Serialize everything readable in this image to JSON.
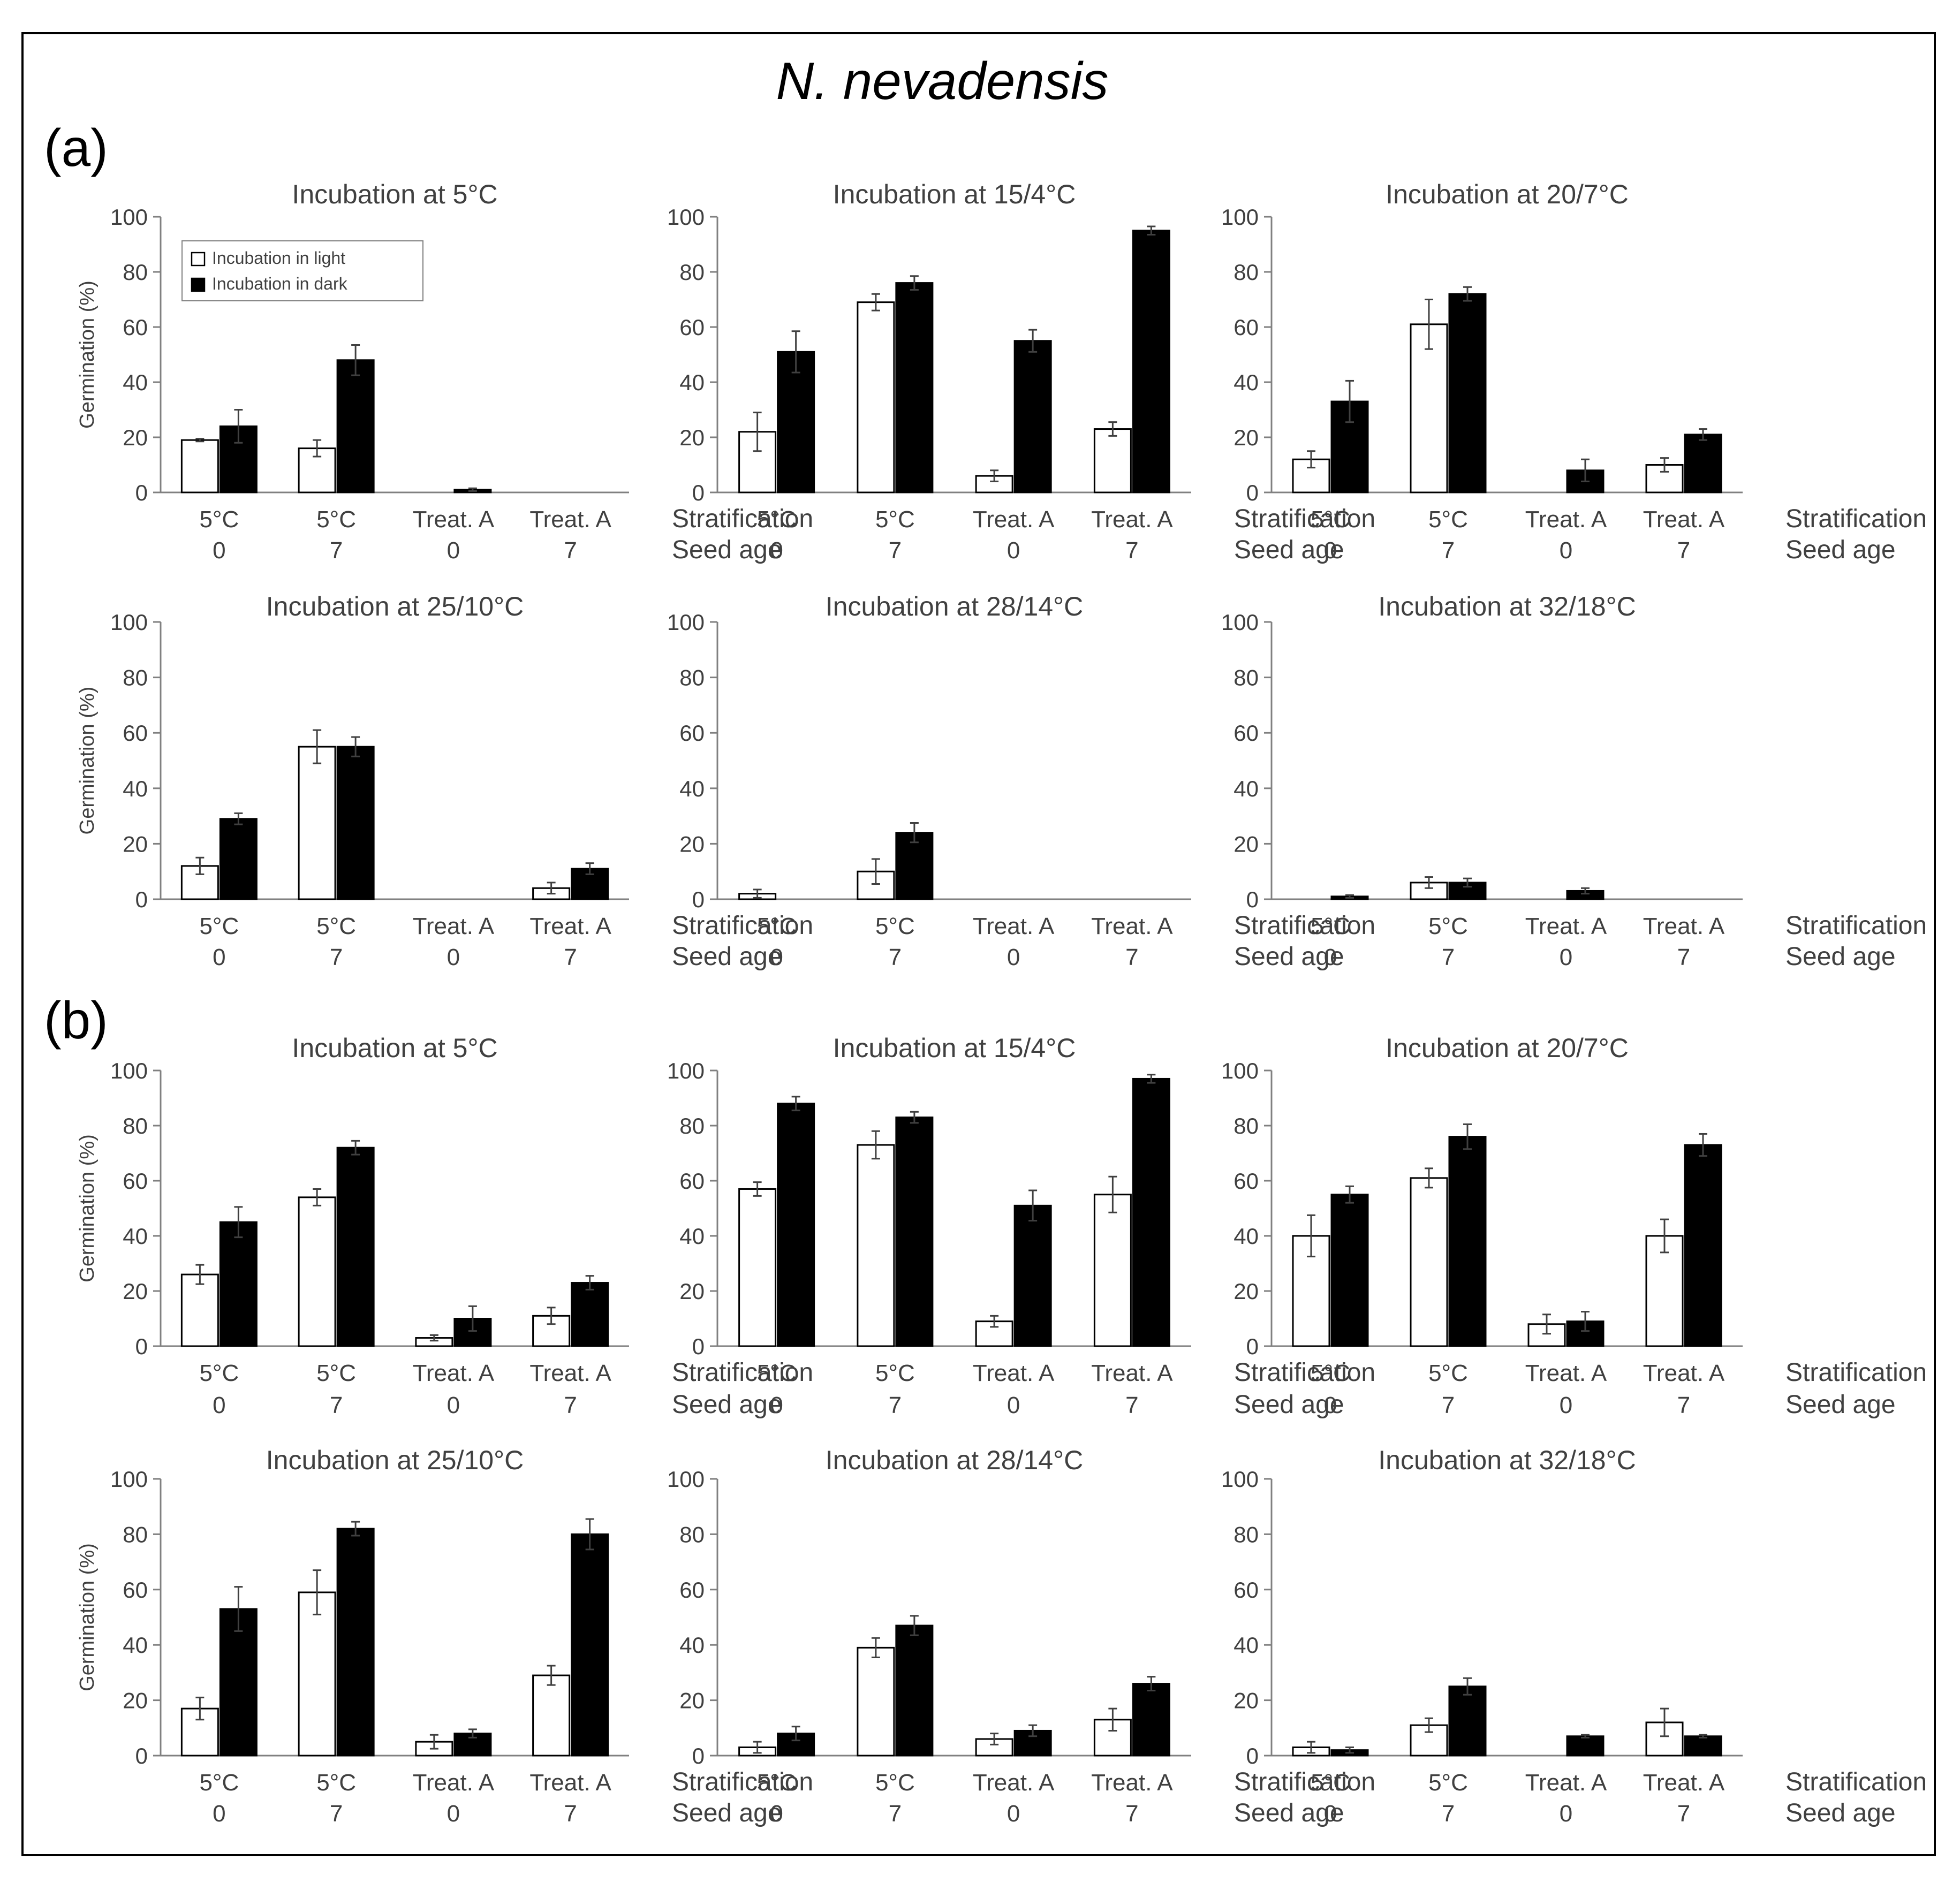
{
  "figure": {
    "title": "N. nevadensis",
    "colors": {
      "light_bar": "#ffffff",
      "dark_bar": "#000000",
      "axis": "#808080",
      "text": "#404040",
      "border": "#000000"
    }
  },
  "panels": [
    {
      "label": "(a)"
    },
    {
      "label": "(b)"
    }
  ],
  "chart_data": [
    {
      "type": "bar",
      "panel": "a",
      "title": "Incubation at 5°C",
      "ylabel": "Germination (%)",
      "ylim": [
        0,
        100
      ],
      "yticks": [
        0,
        20,
        40,
        60,
        80,
        100
      ],
      "legend": {
        "entries": [
          "Incubation in light",
          "Incubation in dark"
        ],
        "position": "top-left"
      },
      "categories": [
        "5°C",
        "5°C",
        "Treat. A",
        "Treat. A"
      ],
      "categories2": [
        "0",
        "7",
        "0",
        "7"
      ],
      "group_labels": [
        "Stratification",
        "Seed age"
      ],
      "series": [
        {
          "name": "Incubation in light",
          "values": [
            19,
            16,
            0,
            0
          ],
          "errors": [
            0.5,
            3,
            0,
            0
          ]
        },
        {
          "name": "Incubation in dark",
          "values": [
            24,
            48,
            1,
            0
          ],
          "errors": [
            6,
            5.5,
            0.5,
            0
          ]
        }
      ]
    },
    {
      "type": "bar",
      "panel": "a",
      "title": "Incubation at 15/4°C",
      "ylabel": "",
      "ylim": [
        0,
        100
      ],
      "yticks": [
        0,
        20,
        40,
        60,
        80,
        100
      ],
      "categories": [
        "5°C",
        "5°C",
        "Treat. A",
        "Treat. A"
      ],
      "categories2": [
        "0",
        "7",
        "0",
        "7"
      ],
      "group_labels": [
        "Stratification",
        "Seed age"
      ],
      "series": [
        {
          "name": "Incubation in light",
          "values": [
            22,
            69,
            6,
            23
          ],
          "errors": [
            7,
            3,
            2,
            2.5
          ]
        },
        {
          "name": "Incubation in dark",
          "values": [
            51,
            76,
            55,
            95
          ],
          "errors": [
            7.5,
            2.5,
            4,
            1.5
          ]
        }
      ]
    },
    {
      "type": "bar",
      "panel": "a",
      "title": "Incubation at 20/7°C",
      "ylabel": "",
      "ylim": [
        0,
        100
      ],
      "yticks": [
        0,
        20,
        40,
        60,
        80,
        100
      ],
      "categories": [
        "5°C",
        "5°C",
        "Treat. A",
        "Treat. A"
      ],
      "categories2": [
        "0",
        "7",
        "0",
        "7"
      ],
      "group_labels": [
        "Stratification",
        "Seed age"
      ],
      "series": [
        {
          "name": "Incubation in light",
          "values": [
            12,
            61,
            0,
            10
          ],
          "errors": [
            3,
            9,
            0,
            2.5
          ]
        },
        {
          "name": "Incubation in dark",
          "values": [
            33,
            72,
            8,
            21
          ],
          "errors": [
            7.5,
            2.5,
            4,
            2
          ]
        }
      ]
    },
    {
      "type": "bar",
      "panel": "a",
      "title": "Incubation at 25/10°C",
      "ylabel": "Germination (%)",
      "ylim": [
        0,
        100
      ],
      "yticks": [
        0,
        20,
        40,
        60,
        80,
        100
      ],
      "categories": [
        "5°C",
        "5°C",
        "Treat. A",
        "Treat. A"
      ],
      "categories2": [
        "0",
        "7",
        "0",
        "7"
      ],
      "group_labels": [
        "Stratification",
        "Seed age"
      ],
      "series": [
        {
          "name": "Incubation in light",
          "values": [
            12,
            55,
            0,
            4
          ],
          "errors": [
            3,
            6,
            0,
            2
          ]
        },
        {
          "name": "Incubation in dark",
          "values": [
            29,
            55,
            0,
            11
          ],
          "errors": [
            2,
            3.5,
            0,
            2
          ]
        }
      ]
    },
    {
      "type": "bar",
      "panel": "a",
      "title": "Incubation at 28/14°C",
      "ylabel": "",
      "ylim": [
        0,
        100
      ],
      "yticks": [
        0,
        20,
        40,
        60,
        80,
        100
      ],
      "categories": [
        "5°C",
        "5°C",
        "Treat. A",
        "Treat. A"
      ],
      "categories2": [
        "0",
        "7",
        "0",
        "7"
      ],
      "group_labels": [
        "Stratification",
        "Seed age"
      ],
      "series": [
        {
          "name": "Incubation in light",
          "values": [
            2,
            10,
            0,
            0
          ],
          "errors": [
            1.5,
            4.5,
            0,
            0
          ]
        },
        {
          "name": "Incubation in dark",
          "values": [
            0,
            24,
            0,
            0
          ],
          "errors": [
            0,
            3.5,
            0,
            0
          ]
        }
      ]
    },
    {
      "type": "bar",
      "panel": "a",
      "title": "Incubation at 32/18°C",
      "ylabel": "",
      "ylim": [
        0,
        100
      ],
      "yticks": [
        0,
        20,
        40,
        60,
        80,
        100
      ],
      "categories": [
        "5°C",
        "5°C",
        "Treat. A",
        "Treat. A"
      ],
      "categories2": [
        "0",
        "7",
        "0",
        "7"
      ],
      "group_labels": [
        "Stratification",
        "Seed age"
      ],
      "series": [
        {
          "name": "Incubation in light",
          "values": [
            0,
            6,
            0,
            0
          ],
          "errors": [
            0,
            2,
            0,
            0
          ]
        },
        {
          "name": "Incubation in dark",
          "values": [
            1,
            6,
            3,
            0
          ],
          "errors": [
            0.5,
            1.5,
            1,
            0
          ]
        }
      ]
    },
    {
      "type": "bar",
      "panel": "b",
      "title": "Incubation at 5°C",
      "ylabel": "Germination (%)",
      "ylim": [
        0,
        100
      ],
      "yticks": [
        0,
        20,
        40,
        60,
        80,
        100
      ],
      "categories": [
        "5°C",
        "5°C",
        "Treat. A",
        "Treat. A"
      ],
      "categories2": [
        "0",
        "7",
        "0",
        "7"
      ],
      "group_labels": [
        "Stratification",
        "Seed age"
      ],
      "series": [
        {
          "name": "Incubation in light",
          "values": [
            26,
            54,
            3,
            11
          ],
          "errors": [
            3.5,
            3,
            1,
            3
          ]
        },
        {
          "name": "Incubation in dark",
          "values": [
            45,
            72,
            10,
            23
          ],
          "errors": [
            5.5,
            2.5,
            4.5,
            2.5
          ]
        }
      ]
    },
    {
      "type": "bar",
      "panel": "b",
      "title": "Incubation at 15/4°C",
      "ylabel": "",
      "ylim": [
        0,
        100
      ],
      "yticks": [
        0,
        20,
        40,
        60,
        80,
        100
      ],
      "categories": [
        "5°C",
        "5°C",
        "Treat. A",
        "Treat. A"
      ],
      "categories2": [
        "0",
        "7",
        "0",
        "7"
      ],
      "group_labels": [
        "Stratification",
        "Seed age"
      ],
      "series": [
        {
          "name": "Incubation in light",
          "values": [
            57,
            73,
            9,
            55
          ],
          "errors": [
            2.5,
            5,
            2,
            6.5
          ]
        },
        {
          "name": "Incubation in dark",
          "values": [
            88,
            83,
            51,
            97
          ],
          "errors": [
            2.5,
            2,
            5.5,
            1.5
          ]
        }
      ]
    },
    {
      "type": "bar",
      "panel": "b",
      "title": "Incubation at 20/7°C",
      "ylabel": "",
      "ylim": [
        0,
        100
      ],
      "yticks": [
        0,
        20,
        40,
        60,
        80,
        100
      ],
      "categories": [
        "5°C",
        "5°C",
        "Treat. A",
        "Treat. A"
      ],
      "categories2": [
        "0",
        "7",
        "0",
        "7"
      ],
      "group_labels": [
        "Stratification",
        "Seed age"
      ],
      "series": [
        {
          "name": "Incubation in light",
          "values": [
            40,
            61,
            8,
            40
          ],
          "errors": [
            7.5,
            3.5,
            3.5,
            6
          ]
        },
        {
          "name": "Incubation in dark",
          "values": [
            55,
            76,
            9,
            73
          ],
          "errors": [
            3,
            4.5,
            3.5,
            4
          ]
        }
      ]
    },
    {
      "type": "bar",
      "panel": "b",
      "title": "Incubation at 25/10°C",
      "ylabel": "Germination (%)",
      "ylim": [
        0,
        100
      ],
      "yticks": [
        0,
        20,
        40,
        60,
        80,
        100
      ],
      "categories": [
        "5°C",
        "5°C",
        "Treat. A",
        "Treat. A"
      ],
      "categories2": [
        "0",
        "7",
        "0",
        "7"
      ],
      "group_labels": [
        "Stratification",
        "Seed age"
      ],
      "series": [
        {
          "name": "Incubation in light",
          "values": [
            17,
            59,
            5,
            29
          ],
          "errors": [
            4,
            8,
            2.5,
            3.5
          ]
        },
        {
          "name": "Incubation in dark",
          "values": [
            53,
            82,
            8,
            80
          ],
          "errors": [
            8,
            2.5,
            1.5,
            5.5
          ]
        }
      ]
    },
    {
      "type": "bar",
      "panel": "b",
      "title": "Incubation at 28/14°C",
      "ylabel": "",
      "ylim": [
        0,
        100
      ],
      "yticks": [
        0,
        20,
        40,
        60,
        80,
        100
      ],
      "categories": [
        "5°C",
        "5°C",
        "Treat. A",
        "Treat. A"
      ],
      "categories2": [
        "0",
        "7",
        "0",
        "7"
      ],
      "group_labels": [
        "Stratification",
        "Seed age"
      ],
      "series": [
        {
          "name": "Incubation in light",
          "values": [
            3,
            39,
            6,
            13
          ],
          "errors": [
            2,
            3.5,
            2,
            4
          ]
        },
        {
          "name": "Incubation in dark",
          "values": [
            8,
            47,
            9,
            26
          ],
          "errors": [
            2.5,
            3.5,
            2,
            2.5
          ]
        }
      ]
    },
    {
      "type": "bar",
      "panel": "b",
      "title": "Incubation at 32/18°C",
      "ylabel": "",
      "ylim": [
        0,
        100
      ],
      "yticks": [
        0,
        20,
        40,
        60,
        80,
        100
      ],
      "categories": [
        "5°C",
        "5°C",
        "Treat. A",
        "Treat. A"
      ],
      "categories2": [
        "0",
        "7",
        "0",
        "7"
      ],
      "group_labels": [
        "Stratification",
        "Seed age"
      ],
      "series": [
        {
          "name": "Incubation in light",
          "values": [
            3,
            11,
            0,
            12
          ],
          "errors": [
            2,
            2.5,
            0,
            5
          ]
        },
        {
          "name": "Incubation in dark",
          "values": [
            2,
            25,
            7,
            7
          ],
          "errors": [
            1,
            3,
            0.5,
            0.5
          ]
        }
      ]
    }
  ]
}
